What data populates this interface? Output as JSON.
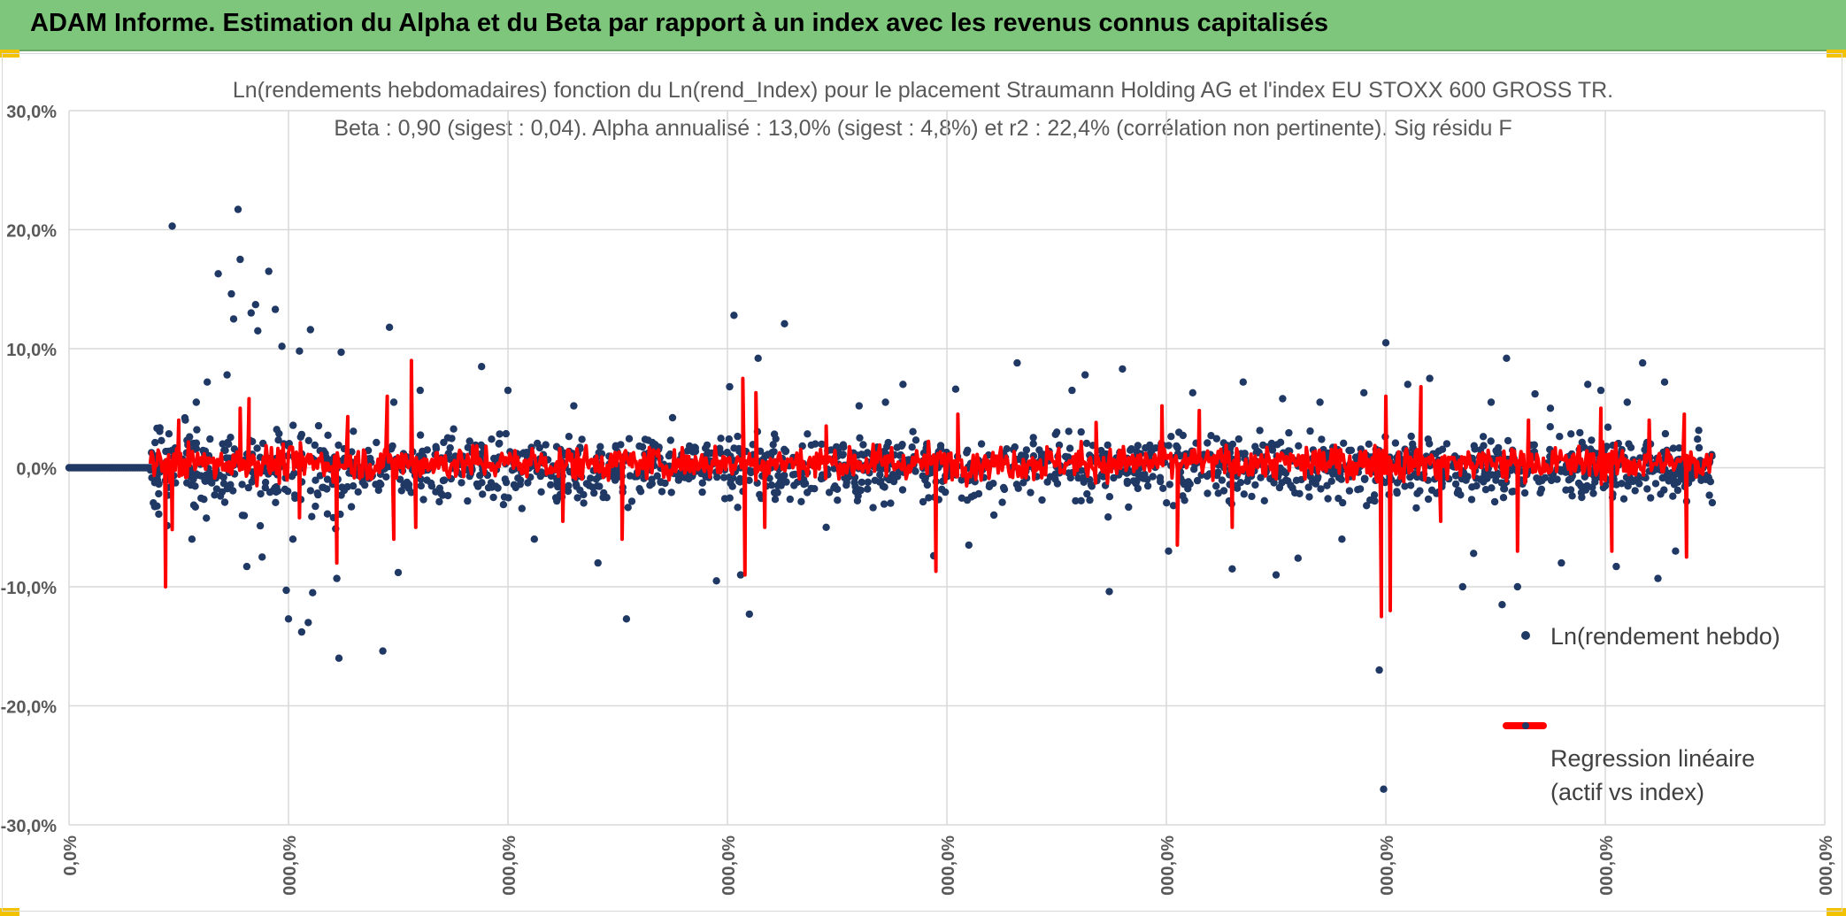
{
  "banner": {
    "title": "ADAM Informe. Estimation du Alpha et du Beta par rapport à un index avec les revenus connus capitalisés",
    "bg_color": "#7dc67b",
    "corner_color": "#f2c200"
  },
  "chart_data": {
    "type": "scatter",
    "title": "Ln(rendements hebdomadaires) fonction du Ln(rend_Index) pour le placement Straumann Holding AG et l'index EU STOXX 600 GROSS TR.",
    "subtitle": "Beta : 0,90 (sigest : 0,04). Alpha annualisé : 13,0% (sigest : 4,8%) et r2 : 22,4% (corrélation non pertinente). Sig résidu F",
    "ylim": [
      -0.3,
      0.3
    ],
    "yticks": [
      "30,0%",
      "20,0%",
      "10,0%",
      "0,0%",
      "-10,0%",
      "-20,0%",
      "-30,0%"
    ],
    "xlim": [
      0,
      8
    ],
    "xticks": [
      "0,0%",
      "000,0%",
      "000,0%",
      "000,0%",
      "000,0%",
      "000,0%",
      "000,0%",
      "000,0%",
      "000,0%"
    ],
    "grid": true,
    "legend_position": "right",
    "series": [
      {
        "name": "Ln(rendement hebdo)",
        "kind": "scatter",
        "color": "#203864",
        "zero_run_end": 0.37,
        "points": [
          [
            0.47,
            0.203
          ],
          [
            0.53,
            0.04
          ],
          [
            0.56,
            -0.06
          ],
          [
            0.58,
            0.055
          ],
          [
            0.63,
            0.072
          ],
          [
            0.68,
            0.163
          ],
          [
            0.72,
            0.078
          ],
          [
            0.74,
            0.146
          ],
          [
            0.75,
            0.125
          ],
          [
            0.77,
            0.217
          ],
          [
            0.78,
            0.175
          ],
          [
            0.79,
            -0.04
          ],
          [
            0.81,
            -0.083
          ],
          [
            0.83,
            0.13
          ],
          [
            0.85,
            0.137
          ],
          [
            0.86,
            0.115
          ],
          [
            0.88,
            -0.075
          ],
          [
            0.91,
            0.165
          ],
          [
            0.94,
            0.133
          ],
          [
            0.97,
            0.102
          ],
          [
            0.99,
            -0.103
          ],
          [
            1.0,
            -0.127
          ],
          [
            1.02,
            -0.06
          ],
          [
            1.05,
            0.098
          ],
          [
            1.06,
            -0.138
          ],
          [
            1.09,
            -0.13
          ],
          [
            1.1,
            0.116
          ],
          [
            1.11,
            -0.105
          ],
          [
            1.22,
            -0.093
          ],
          [
            1.24,
            0.097
          ],
          [
            1.23,
            -0.16
          ],
          [
            1.43,
            -0.154
          ],
          [
            1.46,
            0.118
          ],
          [
            1.5,
            -0.088
          ],
          [
            1.48,
            0.055
          ],
          [
            1.6,
            0.065
          ],
          [
            1.88,
            0.085
          ],
          [
            2.0,
            0.065
          ],
          [
            2.12,
            -0.06
          ],
          [
            2.3,
            0.052
          ],
          [
            2.41,
            -0.08
          ],
          [
            2.54,
            -0.127
          ],
          [
            2.75,
            0.042
          ],
          [
            2.95,
            -0.095
          ],
          [
            3.01,
            0.068
          ],
          [
            3.03,
            0.128
          ],
          [
            3.06,
            -0.09
          ],
          [
            3.1,
            -0.123
          ],
          [
            3.14,
            0.092
          ],
          [
            3.26,
            0.121
          ],
          [
            3.45,
            -0.05
          ],
          [
            3.6,
            0.052
          ],
          [
            3.72,
            0.055
          ],
          [
            3.8,
            0.07
          ],
          [
            3.94,
            -0.074
          ],
          [
            4.04,
            0.066
          ],
          [
            4.1,
            -0.065
          ],
          [
            4.32,
            0.088
          ],
          [
            4.57,
            0.065
          ],
          [
            4.63,
            0.078
          ],
          [
            4.74,
            -0.104
          ],
          [
            4.8,
            0.083
          ],
          [
            5.01,
            -0.07
          ],
          [
            5.12,
            0.063
          ],
          [
            5.3,
            -0.085
          ],
          [
            5.35,
            0.072
          ],
          [
            5.5,
            -0.09
          ],
          [
            5.53,
            0.058
          ],
          [
            5.6,
            -0.076
          ],
          [
            5.7,
            0.055
          ],
          [
            5.9,
            0.063
          ],
          [
            5.97,
            -0.17
          ],
          [
            5.99,
            -0.27
          ],
          [
            6.0,
            0.105
          ],
          [
            6.05,
            -0.02
          ],
          [
            6.1,
            0.07
          ],
          [
            6.2,
            0.075
          ],
          [
            6.35,
            -0.1
          ],
          [
            6.4,
            -0.072
          ],
          [
            6.48,
            0.055
          ],
          [
            6.53,
            -0.115
          ],
          [
            6.55,
            0.092
          ],
          [
            6.6,
            -0.1
          ],
          [
            6.68,
            0.062
          ],
          [
            6.8,
            -0.08
          ],
          [
            6.92,
            0.07
          ],
          [
            6.98,
            0.065
          ],
          [
            7.05,
            -0.083
          ],
          [
            7.17,
            0.088
          ],
          [
            7.24,
            -0.093
          ],
          [
            7.27,
            0.072
          ],
          [
            7.32,
            -0.07
          ],
          [
            7.1,
            0.055
          ],
          [
            6.75,
            0.05
          ],
          [
            5.8,
            -0.06
          ]
        ]
      },
      {
        "name": "Regression linéaire\n(actif vs index)",
        "kind": "line",
        "color": "#ff0000",
        "x_start": 0.37,
        "x_end": 7.49,
        "spikes": [
          [
            0.44,
            -0.1
          ],
          [
            0.47,
            -0.052
          ],
          [
            0.5,
            0.04
          ],
          [
            0.78,
            0.05
          ],
          [
            0.82,
            0.058
          ],
          [
            1.05,
            -0.042
          ],
          [
            1.22,
            -0.08
          ],
          [
            1.27,
            0.043
          ],
          [
            1.45,
            0.06
          ],
          [
            1.48,
            -0.06
          ],
          [
            1.56,
            0.09
          ],
          [
            1.58,
            -0.05
          ],
          [
            2.25,
            -0.045
          ],
          [
            2.52,
            -0.06
          ],
          [
            3.07,
            0.075
          ],
          [
            3.08,
            -0.09
          ],
          [
            3.13,
            0.063
          ],
          [
            3.17,
            -0.05
          ],
          [
            3.45,
            0.035
          ],
          [
            3.95,
            -0.087
          ],
          [
            4.05,
            0.045
          ],
          [
            4.68,
            0.038
          ],
          [
            4.98,
            0.052
          ],
          [
            5.05,
            -0.065
          ],
          [
            5.15,
            0.048
          ],
          [
            5.3,
            -0.05
          ],
          [
            5.98,
            -0.125
          ],
          [
            6.0,
            0.06
          ],
          [
            6.02,
            -0.12
          ],
          [
            6.16,
            0.068
          ],
          [
            6.25,
            -0.045
          ],
          [
            6.6,
            -0.07
          ],
          [
            6.65,
            0.04
          ],
          [
            6.98,
            0.05
          ],
          [
            7.03,
            -0.07
          ],
          [
            7.2,
            0.04
          ],
          [
            7.36,
            0.045
          ],
          [
            7.37,
            -0.075
          ]
        ]
      }
    ]
  }
}
